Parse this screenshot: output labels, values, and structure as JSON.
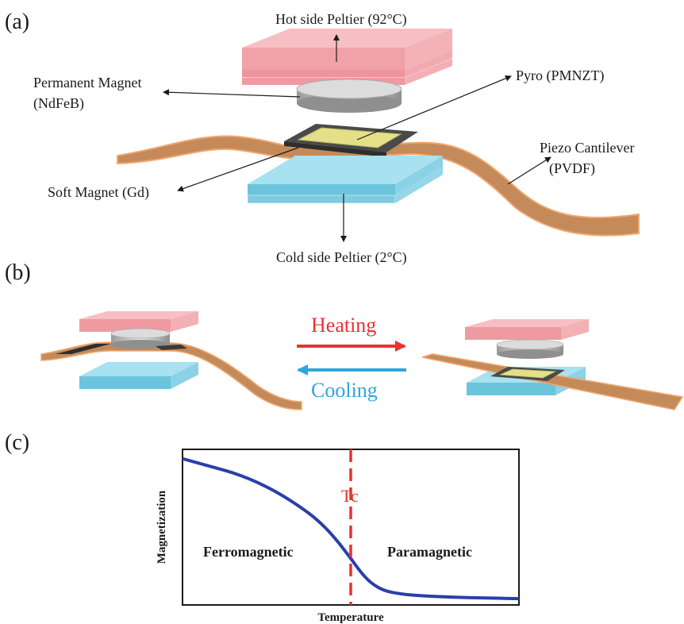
{
  "panels": {
    "a": "(a)",
    "b": "(b)",
    "c": "(c)"
  },
  "labels_a": {
    "hot": "Hot side Peltier (92°C)",
    "perm_magnet_line1": "Permanent Magnet",
    "perm_magnet_line2": "(NdFeB)",
    "pyro": "Pyro (PMNZT)",
    "piezo_line1": "Piezo Cantilever",
    "piezo_line2": "(PVDF)",
    "soft_magnet": "Soft Magnet (Gd)",
    "cold": "Cold side Peltier (2°C)"
  },
  "labels_b": {
    "heating": "Heating",
    "cooling": "Cooling"
  },
  "colors": {
    "hot_peltier": "#f4a8ae",
    "cold_peltier": "#7fd0e6",
    "magnet": "#bdbdbd",
    "cantilever": "#c48a5a",
    "cantilever_edge": "#f0a870",
    "pyro": "#e4e08a",
    "soft_magnet": "#555555",
    "heating": "#e8332f",
    "cooling": "#2ea6dd",
    "curve": "#2b3fa8",
    "tc_line": "#e8332f"
  },
  "chart_c": {
    "tc_label": "Tc",
    "ylabel": "Magnetization",
    "xlabel": "Temperature",
    "left_region": "Ferromagnetic",
    "right_region": "Paramagnetic",
    "curve": [
      [
        0,
        0.94
      ],
      [
        0.05,
        0.91
      ],
      [
        0.1,
        0.88
      ],
      [
        0.15,
        0.85
      ],
      [
        0.2,
        0.81
      ],
      [
        0.25,
        0.76
      ],
      [
        0.3,
        0.7
      ],
      [
        0.35,
        0.63
      ],
      [
        0.4,
        0.55
      ],
      [
        0.45,
        0.44
      ],
      [
        0.5,
        0.3
      ],
      [
        0.53,
        0.21
      ],
      [
        0.56,
        0.14
      ],
      [
        0.6,
        0.09
      ],
      [
        0.65,
        0.07
      ],
      [
        0.7,
        0.06
      ],
      [
        0.8,
        0.05
      ],
      [
        0.9,
        0.045
      ],
      [
        1.0,
        0.04
      ]
    ],
    "tc_x": 0.5
  }
}
